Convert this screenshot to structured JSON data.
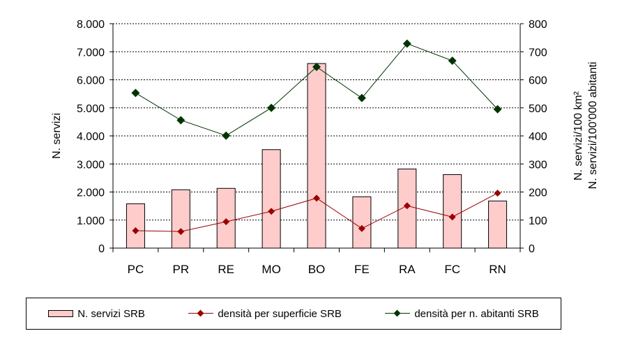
{
  "chart_data": {
    "type": "bar+line",
    "categories": [
      "PC",
      "PR",
      "RE",
      "MO",
      "BO",
      "FE",
      "RA",
      "FC",
      "RN"
    ],
    "series": [
      {
        "name": "N. servizi SRB",
        "axis": "left",
        "kind": "bar",
        "color": "#ffcccc",
        "values": [
          1580,
          2080,
          2130,
          3510,
          6580,
          1830,
          2820,
          2620,
          1680
        ]
      },
      {
        "name": "densità per superficie SRB",
        "axis": "right",
        "kind": "line",
        "color": "#990000",
        "values": [
          62,
          59,
          94,
          131,
          178,
          70,
          151,
          111,
          196
        ]
      },
      {
        "name": "densità per n. abitanti SRB",
        "axis": "right",
        "kind": "line",
        "color": "#003300",
        "values": [
          553,
          456,
          401,
          500,
          646,
          535,
          729,
          668,
          495
        ]
      }
    ],
    "left_axis": {
      "label": "N. servizi",
      "range": [
        0,
        8000
      ],
      "ticks": [
        "0",
        "1.000",
        "2.000",
        "3.000",
        "4.000",
        "5.000",
        "6.000",
        "7.000",
        "8.000"
      ]
    },
    "right_axis": {
      "label_lines": [
        "N. servizi/100 km²",
        "N. servizi/100'000 abitanti"
      ],
      "range": [
        0,
        800
      ],
      "ticks": [
        "0",
        "100",
        "200",
        "300",
        "400",
        "500",
        "600",
        "700",
        "800"
      ]
    },
    "grid": "horizontal dashed",
    "legend_position": "bottom"
  }
}
